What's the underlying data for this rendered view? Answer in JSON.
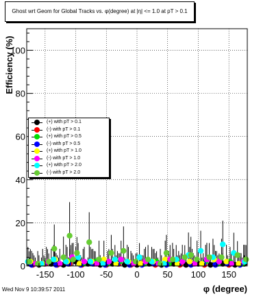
{
  "title": "Ghost wrt Geom for Global Tracks vs. φ(degree) at |η| <= 1.0 at pT > 0.1",
  "timestamp": "Wed Nov  9 10:39:57 2011",
  "colors": {
    "black": "#000000",
    "red": "#ff0000",
    "green": "#00dd00",
    "blue": "#0000ff",
    "yellow": "#ffff00",
    "magenta": "#ff00ff",
    "cyan": "#00ffff",
    "lightgreen": "#66cc33"
  },
  "chart_data": {
    "type": "scatter",
    "title": "Ghost wrt Geom for Global Tracks vs. φ(degree) at |η| <= 1.0 at pT > 0.1",
    "xlabel": "φ (degree)",
    "ylabel": "Efficiency (%)",
    "xlim": [
      -180,
      180
    ],
    "ylim": [
      0,
      110
    ],
    "xticks": [
      -150,
      -100,
      -50,
      0,
      50,
      100,
      150
    ],
    "yticks": [
      0,
      20,
      40,
      60,
      80,
      100
    ],
    "grid": true,
    "legend_position": "left",
    "series": [
      {
        "name": "(+) with pT > 0.1",
        "color": "#000000",
        "points": [
          [
            -175,
            1
          ],
          [
            -160,
            0.5
          ],
          [
            -140,
            1
          ],
          [
            -120,
            0.5
          ],
          [
            -100,
            2
          ],
          [
            -80,
            1
          ],
          [
            -60,
            0.5
          ],
          [
            -40,
            1
          ],
          [
            -20,
            0.5
          ],
          [
            0,
            0.5
          ],
          [
            20,
            1
          ],
          [
            40,
            0.5
          ],
          [
            60,
            1
          ],
          [
            80,
            0.5
          ],
          [
            100,
            1
          ],
          [
            120,
            0.5
          ],
          [
            140,
            1
          ],
          [
            160,
            0.5
          ],
          [
            175,
            1
          ]
        ]
      },
      {
        "name": "(-) with pT > 0.1",
        "color": "#ff0000",
        "points": [
          [
            -170,
            0.5
          ],
          [
            -150,
            1
          ],
          [
            -130,
            0.5
          ],
          [
            -110,
            1
          ],
          [
            -90,
            0.5
          ],
          [
            -70,
            1
          ],
          [
            -50,
            0.5
          ],
          [
            -30,
            1
          ],
          [
            -10,
            0.5
          ],
          [
            10,
            1
          ],
          [
            30,
            0.5
          ],
          [
            50,
            1
          ],
          [
            70,
            0.5
          ],
          [
            90,
            1
          ],
          [
            110,
            0.5
          ],
          [
            130,
            1
          ],
          [
            150,
            0.5
          ],
          [
            170,
            1
          ]
        ]
      },
      {
        "name": "(+) with pT > 0.5",
        "color": "#00dd00",
        "points": [
          [
            -168,
            1
          ],
          [
            -148,
            2
          ],
          [
            -128,
            1
          ],
          [
            -108,
            3
          ],
          [
            -88,
            1
          ],
          [
            -68,
            2
          ],
          [
            -48,
            1
          ],
          [
            -28,
            2
          ],
          [
            -8,
            1
          ],
          [
            12,
            1
          ],
          [
            32,
            2
          ],
          [
            52,
            1
          ],
          [
            72,
            2
          ],
          [
            92,
            1
          ],
          [
            112,
            2
          ],
          [
            132,
            1
          ],
          [
            152,
            2
          ],
          [
            172,
            1
          ]
        ]
      },
      {
        "name": "(-) with pT > 0.5",
        "color": "#0000ff",
        "points": [
          [
            -172,
            0.5
          ],
          [
            -152,
            1
          ],
          [
            -132,
            0.5
          ],
          [
            -112,
            1
          ],
          [
            -92,
            0.5
          ],
          [
            -72,
            1
          ],
          [
            -52,
            0.5
          ],
          [
            -32,
            1
          ],
          [
            -12,
            0.5
          ],
          [
            8,
            0.5
          ],
          [
            28,
            1
          ],
          [
            48,
            0.5
          ],
          [
            68,
            1
          ],
          [
            88,
            0.5
          ],
          [
            108,
            1
          ],
          [
            128,
            0.5
          ],
          [
            148,
            1
          ],
          [
            168,
            0.5
          ]
        ]
      },
      {
        "name": "(+) with pT > 1.0",
        "color": "#ffff00",
        "points": [
          [
            -174,
            2
          ],
          [
            -154,
            1
          ],
          [
            -134,
            3
          ],
          [
            -114,
            2
          ],
          [
            -94,
            1
          ],
          [
            -74,
            2
          ],
          [
            -54,
            3
          ],
          [
            -34,
            1
          ],
          [
            -14,
            2
          ],
          [
            6,
            1
          ],
          [
            26,
            2
          ],
          [
            46,
            3
          ],
          [
            66,
            1
          ],
          [
            86,
            2
          ],
          [
            106,
            1
          ],
          [
            126,
            3
          ],
          [
            146,
            2
          ],
          [
            166,
            1
          ]
        ]
      },
      {
        "name": "(-) with pT > 1.0",
        "color": "#ff00ff",
        "points": [
          [
            -166,
            1
          ],
          [
            -146,
            2
          ],
          [
            -126,
            1
          ],
          [
            -106,
            4
          ],
          [
            -86,
            2
          ],
          [
            -66,
            1
          ],
          [
            -46,
            2
          ],
          [
            -26,
            3
          ],
          [
            -6,
            1
          ],
          [
            14,
            2
          ],
          [
            34,
            1
          ],
          [
            54,
            3
          ],
          [
            74,
            2
          ],
          [
            94,
            1
          ],
          [
            114,
            3
          ],
          [
            134,
            2
          ],
          [
            154,
            1
          ],
          [
            174,
            2
          ]
        ]
      },
      {
        "name": "(+) with pT > 2.0",
        "color": "#00ffff",
        "points": [
          [
            -178,
            2
          ],
          [
            -156,
            1
          ],
          [
            -136,
            3
          ],
          [
            -116,
            2
          ],
          [
            -96,
            4
          ],
          [
            -76,
            2
          ],
          [
            -56,
            1
          ],
          [
            -36,
            3
          ],
          [
            -16,
            2
          ],
          [
            4,
            4
          ],
          [
            24,
            2
          ],
          [
            44,
            1
          ],
          [
            64,
            3
          ],
          [
            84,
            5
          ],
          [
            104,
            7
          ],
          [
            124,
            4
          ],
          [
            140,
            10
          ],
          [
            158,
            6
          ],
          [
            176,
            2
          ]
        ]
      },
      {
        "name": "(-) with pT > 2.0",
        "color": "#66cc33",
        "points": [
          [
            -176,
            2
          ],
          [
            -162,
            1
          ],
          [
            -144,
            2
          ],
          [
            -135,
            8
          ],
          [
            -120,
            4
          ],
          [
            -110,
            14
          ],
          [
            -104,
            3
          ],
          [
            -98,
            6
          ],
          [
            -78,
            11
          ],
          [
            -62,
            3
          ],
          [
            -42,
            6
          ],
          [
            -22,
            7
          ],
          [
            -2,
            2
          ],
          [
            18,
            3
          ],
          [
            38,
            1
          ],
          [
            48,
            6
          ],
          [
            58,
            3
          ],
          [
            78,
            4
          ],
          [
            88,
            5
          ],
          [
            98,
            3
          ],
          [
            118,
            4
          ],
          [
            138,
            4
          ],
          [
            164,
            5
          ],
          [
            178,
            3
          ]
        ]
      }
    ]
  }
}
